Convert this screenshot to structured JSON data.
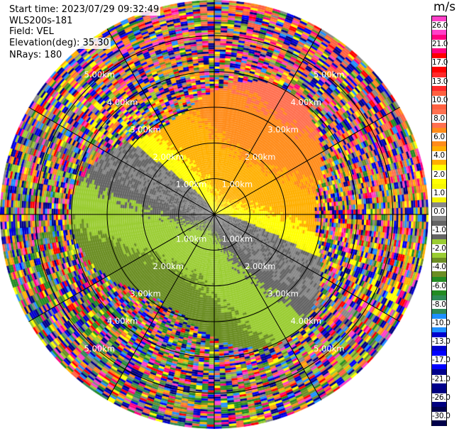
{
  "header": {
    "start_time": "Start time: 2023/07/29 09:32:49",
    "site": "WLS200s-181",
    "field": "Field: VEL",
    "elevation": "Elevation(deg): 35.30",
    "nrays": "NRays: 180"
  },
  "radar": {
    "nrays": 180,
    "max_range_km": 6,
    "range_rings_km": [
      1,
      2,
      3,
      4,
      5
    ],
    "ring_label": "km",
    "ring_labels": [
      "1.00km",
      "2.00km",
      "3.00km",
      "4.00km",
      "5.00km"
    ],
    "spoke_angles_deg": [
      0,
      30,
      60,
      90,
      120,
      150,
      180,
      210,
      240,
      270,
      300,
      330
    ]
  },
  "colorbar": {
    "unit": "m/s",
    "levels": [
      "26.0",
      "21.0",
      "17.0",
      "13.0",
      "10.0",
      "8.0",
      "6.0",
      "4.0",
      "2.0",
      "1.0",
      "0.0",
      "-1.0",
      "-2.0",
      "-4.0",
      "-6.0",
      "-8.0",
      "-10.0",
      "-13.0",
      "-17.0",
      "-21.0",
      "-26.0",
      "-30.0"
    ],
    "colors": [
      "#ff3fc8",
      "#ff0080",
      "#ff0000",
      "#ff2a2a",
      "#ff6040",
      "#ff7050",
      "#ff8c1a",
      "#ffb000",
      "#ffff00",
      "#f6f600",
      "#888888",
      "#646464",
      "#9acd32",
      "#6b8e23",
      "#228b22",
      "#2e8b57",
      "#1e90ff",
      "#0000cd",
      "#0000ff",
      "#00008b",
      "#000080",
      "#00004a"
    ]
  }
}
